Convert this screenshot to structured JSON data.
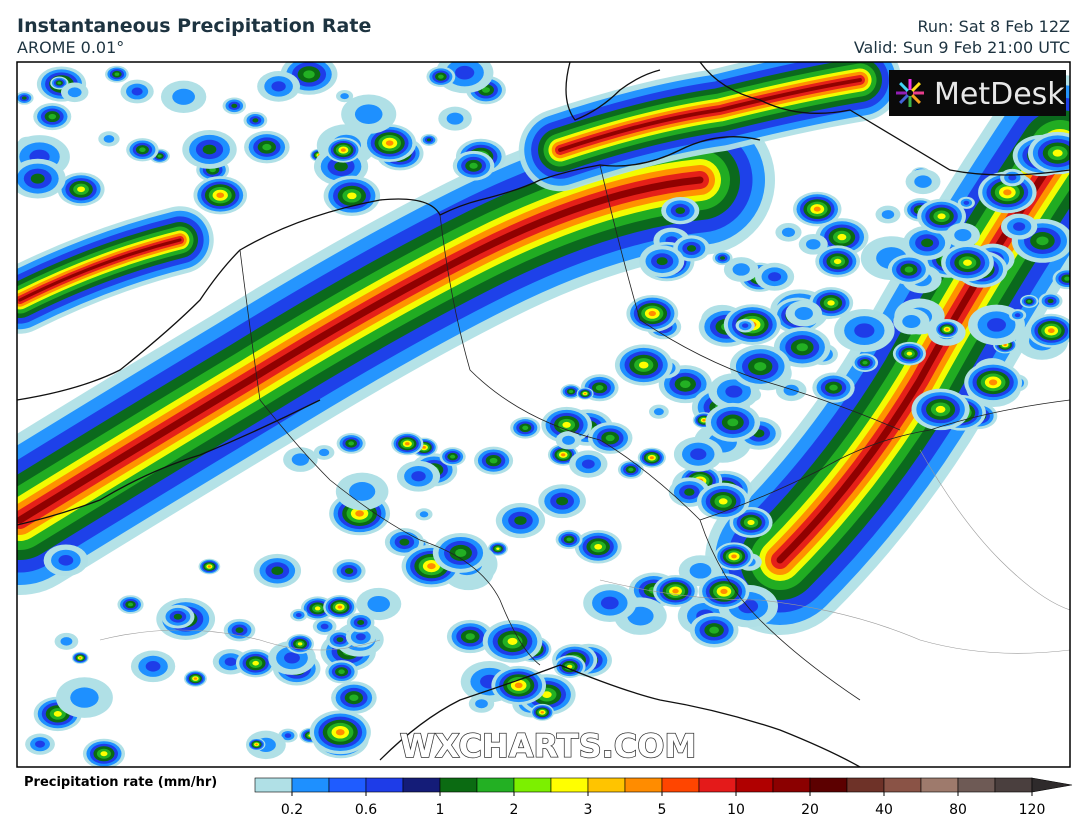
{
  "header": {
    "title": "Instantaneous Precipitation Rate",
    "model": "AROME 0.01°",
    "run": "Run: Sat 8 Feb 12Z",
    "valid": "Valid: Sun 9 Feb 21:00 UTC"
  },
  "logo": "MetDesk",
  "watermark": "WXCHARTS.COM",
  "colorbar": {
    "label": "Precipitation rate (mm/hr)",
    "colors": [
      "#b0e0e6",
      "#1e90ff",
      "#1f5cff",
      "#1e3ce8",
      "#141c78",
      "#0b6b12",
      "#23b023",
      "#7cf000",
      "#ffff00",
      "#ffc400",
      "#ff8c00",
      "#ff4500",
      "#e41a1a",
      "#b00000",
      "#8b0000",
      "#5c0000",
      "#6e3228",
      "#8a5346",
      "#9e7a6c",
      "#6e5a55",
      "#4a3f3e",
      "#2e2a2b"
    ],
    "ticks": [
      0.2,
      0.6,
      1,
      2,
      3,
      5,
      10,
      20,
      40,
      80,
      120
    ]
  }
}
